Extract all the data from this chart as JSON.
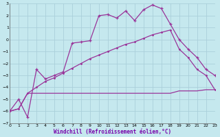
{
  "xlabel": "Windchill (Refroidissement éolien,°C)",
  "bg_color": "#c5e8ee",
  "grid_color": "#aacfda",
  "line_color": "#993399",
  "xlim": [
    0,
    23
  ],
  "ylim": [
    -7,
    3
  ],
  "xticks": [
    0,
    1,
    2,
    3,
    4,
    5,
    6,
    7,
    8,
    9,
    10,
    11,
    12,
    13,
    14,
    15,
    16,
    17,
    18,
    19,
    20,
    21,
    22,
    23
  ],
  "yticks": [
    -7,
    -6,
    -5,
    -4,
    -3,
    -2,
    -1,
    0,
    1,
    2,
    3
  ],
  "line1_x": [
    0,
    1,
    2,
    3,
    4,
    5,
    6,
    7,
    8,
    9,
    10,
    11,
    12,
    13,
    14,
    15,
    16,
    17,
    18,
    19,
    20,
    21,
    22,
    23
  ],
  "line1_y": [
    -6.0,
    -5.0,
    -6.5,
    -2.5,
    -3.3,
    -3.0,
    -2.7,
    -0.3,
    -0.2,
    -0.1,
    2.0,
    2.1,
    1.8,
    2.4,
    1.6,
    2.5,
    2.9,
    2.6,
    1.3,
    0.0,
    -0.8,
    -1.5,
    -2.5,
    -3.0
  ],
  "line2_x": [
    0,
    1,
    2,
    3,
    4,
    5,
    6,
    7,
    8,
    9,
    10,
    11,
    12,
    13,
    14,
    15,
    16,
    17,
    18,
    19,
    20,
    21,
    22,
    23
  ],
  "line2_y": [
    -6.0,
    -5.8,
    -4.5,
    -4.5,
    -4.5,
    -4.5,
    -4.5,
    -4.5,
    -4.5,
    -4.5,
    -4.5,
    -4.5,
    -4.5,
    -4.5,
    -4.5,
    -4.5,
    -4.5,
    -4.5,
    -4.5,
    -4.3,
    -4.3,
    -4.3,
    -4.2,
    -4.2
  ],
  "line3_x": [
    0,
    1,
    2,
    3,
    4,
    5,
    6,
    7,
    8,
    9,
    10,
    11,
    12,
    13,
    14,
    15,
    16,
    17,
    18,
    19,
    20,
    21,
    22,
    23
  ],
  "line3_y": [
    -6.0,
    -5.8,
    -4.5,
    -4.0,
    -3.5,
    -3.2,
    -2.8,
    -2.4,
    -2.0,
    -1.6,
    -1.3,
    -1.0,
    -0.7,
    -0.4,
    -0.2,
    0.1,
    0.4,
    0.6,
    0.8,
    -0.8,
    -1.5,
    -2.5,
    -3.0,
    -4.2
  ]
}
